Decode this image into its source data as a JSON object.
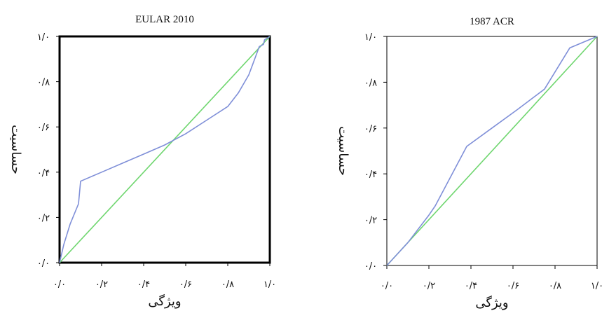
{
  "chart_data": [
    {
      "type": "line",
      "title": "EULAR 2010",
      "xlabel": "ویژگی",
      "ylabel": "حساسیت",
      "xlim": [
        0,
        1
      ],
      "ylim": [
        0,
        1
      ],
      "x_ticks": [
        0,
        0.2,
        0.4,
        0.6,
        0.8,
        1.0
      ],
      "x_tick_labels": [
        "۰/۰",
        "۰/۲",
        "۰/۴",
        "۰/۶",
        "۰/۸",
        "۱/۰"
      ],
      "y_ticks": [
        0,
        0.2,
        0.4,
        0.6,
        0.8,
        1.0
      ],
      "y_tick_labels": [
        "۰/۰",
        "۰/۲",
        "۰/۴",
        "۰/۶",
        "۰/۸",
        "۱/۰"
      ],
      "frame": "bold",
      "grid": false,
      "series": [
        {
          "color": "#7f8fd8",
          "x": [
            0.0,
            0.02,
            0.05,
            0.09,
            0.1,
            0.2,
            0.3,
            0.4,
            0.5,
            0.6,
            0.7,
            0.8,
            0.85,
            0.9,
            0.92,
            0.94,
            0.95,
            0.96,
            0.97,
            0.975,
            1.0
          ],
          "y": [
            0.0,
            0.08,
            0.17,
            0.26,
            0.36,
            0.4,
            0.44,
            0.48,
            0.52,
            0.57,
            0.63,
            0.69,
            0.75,
            0.83,
            0.88,
            0.93,
            0.955,
            0.96,
            0.965,
            0.985,
            1.0
          ]
        },
        {
          "color": "#6fd66f",
          "x": [
            0,
            1
          ],
          "y": [
            0,
            1
          ]
        }
      ]
    },
    {
      "type": "line",
      "title": "1987 ACR",
      "xlabel": "ویژگی",
      "ylabel": "حساسیت",
      "xlim": [
        0,
        1
      ],
      "ylim": [
        0,
        1
      ],
      "x_ticks": [
        0,
        0.2,
        0.4,
        0.6,
        0.8,
        1.0
      ],
      "x_tick_labels": [
        "۰/۰",
        "۰/۲",
        "۰/۴",
        "۰/۶",
        "۰/۸",
        "۱/۰"
      ],
      "y_ticks": [
        0,
        0.2,
        0.4,
        0.6,
        0.8,
        1.0
      ],
      "y_tick_labels": [
        "۰/۰",
        "۰/۲",
        "۰/۴",
        "۰/۶",
        "۰/۸",
        "۱/۰"
      ],
      "frame": "thin",
      "grid": false,
      "series": [
        {
          "color": "#7f8fd8",
          "x": [
            0.0,
            0.1,
            0.2,
            0.23,
            0.38,
            0.5,
            0.62,
            0.75,
            0.87,
            1.0
          ],
          "y": [
            0.0,
            0.1,
            0.22,
            0.26,
            0.52,
            0.6,
            0.68,
            0.77,
            0.95,
            1.0
          ]
        },
        {
          "color": "#6fd66f",
          "x": [
            0,
            1
          ],
          "y": [
            0,
            1
          ]
        }
      ]
    }
  ]
}
